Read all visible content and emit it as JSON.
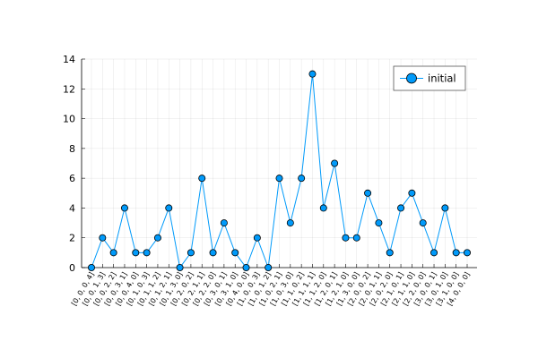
{
  "chart_data": {
    "type": "line",
    "title": "",
    "xlabel": "",
    "ylabel": "",
    "ylim": [
      0,
      14
    ],
    "yticks": [
      0,
      2,
      4,
      6,
      8,
      10,
      12,
      14
    ],
    "grid": true,
    "legend_position": "top-right",
    "categories": [
      "[0, 0, 0, 4]",
      "[0, 0, 1, 3]",
      "[0, 0, 2, 2]",
      "[0, 0, 3, 1]",
      "[0, 0, 4, 0]",
      "[0, 1, 0, 3]",
      "[0, 1, 1, 2]",
      "[0, 1, 2, 1]",
      "[0, 1, 3, 0]",
      "[0, 2, 0, 2]",
      "[0, 2, 1, 1]",
      "[0, 2, 2, 0]",
      "[0, 3, 0, 1]",
      "[0, 3, 1, 0]",
      "[0, 4, 0, 0]",
      "[1, 0, 0, 3]",
      "[1, 0, 1, 2]",
      "[1, 0, 2, 1]",
      "[1, 0, 3, 0]",
      "[1, 1, 0, 2]",
      "[1, 1, 1, 1]",
      "[1, 1, 2, 0]",
      "[1, 2, 0, 1]",
      "[1, 2, 1, 0]",
      "[1, 3, 0, 0]",
      "[2, 0, 0, 2]",
      "[2, 0, 1, 1]",
      "[2, 0, 2, 0]",
      "[2, 1, 0, 1]",
      "[2, 1, 1, 0]",
      "[2, 2, 0, 0]",
      "[3, 0, 0, 1]",
      "[3, 0, 1, 0]",
      "[3, 1, 0, 0]",
      "[4, 0, 0, 0]"
    ],
    "series": [
      {
        "name": "initial",
        "color": "#009AFA",
        "values": [
          0,
          2,
          1,
          4,
          1,
          1,
          2,
          4,
          0,
          1,
          6,
          1,
          3,
          1,
          0,
          2,
          0,
          6,
          3,
          6,
          13,
          4,
          7,
          2,
          2,
          5,
          3,
          1,
          4,
          5,
          3,
          1,
          4,
          1,
          1
        ]
      }
    ]
  }
}
